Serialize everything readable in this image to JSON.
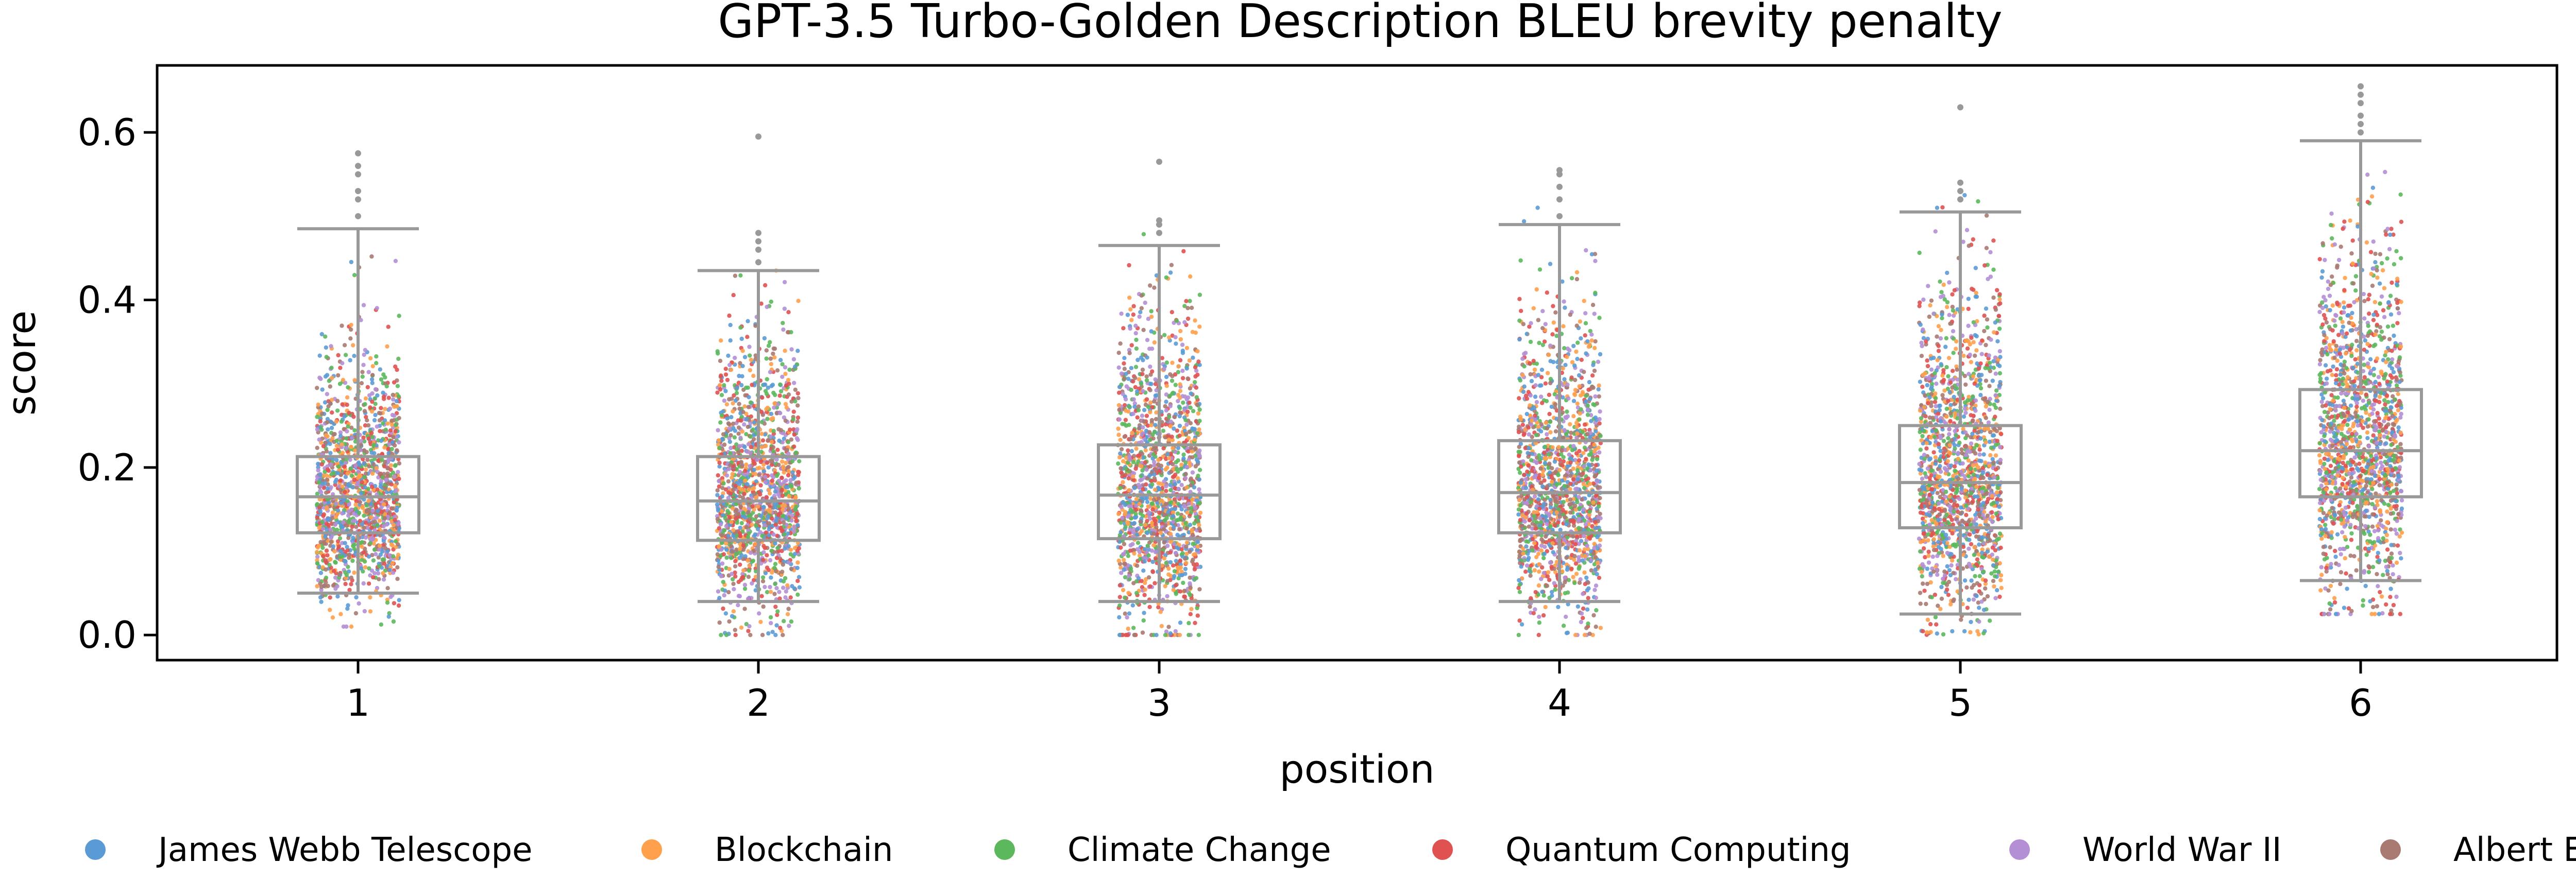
{
  "chart_data": {
    "type": "box-strip",
    "title": "GPT-3.5 Turbo-Golden Description BLEU brevity penalty",
    "xlabel": "position",
    "ylabel": "score",
    "categories": [
      "1",
      "2",
      "3",
      "4",
      "5",
      "6"
    ],
    "ylim": [
      -0.03,
      0.68
    ],
    "yticks": [
      0.0,
      0.2,
      0.4,
      0.6
    ],
    "ytick_labels": [
      "0.0",
      "0.2",
      "0.4",
      "0.6"
    ],
    "grid": false,
    "legend_position": "bottom",
    "box_color": "#999999",
    "series": [
      {
        "name": "James Webb Telescope",
        "color": "#5b9bd5"
      },
      {
        "name": "Blockchain",
        "color": "#ffa04d"
      },
      {
        "name": "Climate Change",
        "color": "#5cb85c"
      },
      {
        "name": "Quantum Computing",
        "color": "#e05252"
      },
      {
        "name": "World War II",
        "color": "#b48fd6"
      },
      {
        "name": "Albert Einstein",
        "color": "#a87a72"
      }
    ],
    "boxes": [
      {
        "position": "1",
        "whisker_low": 0.05,
        "q1": 0.122,
        "median": 0.165,
        "q3": 0.213,
        "whisker_high": 0.485,
        "outliers": [
          0.5,
          0.52,
          0.53,
          0.55,
          0.56,
          0.575
        ]
      },
      {
        "position": "2",
        "whisker_low": 0.04,
        "q1": 0.113,
        "median": 0.16,
        "q3": 0.213,
        "whisker_high": 0.435,
        "outliers": [
          0.445,
          0.46,
          0.47,
          0.48,
          0.595
        ]
      },
      {
        "position": "3",
        "whisker_low": 0.04,
        "q1": 0.115,
        "median": 0.167,
        "q3": 0.227,
        "whisker_high": 0.465,
        "outliers": [
          0.48,
          0.49,
          0.495,
          0.565
        ]
      },
      {
        "position": "4",
        "whisker_low": 0.04,
        "q1": 0.122,
        "median": 0.17,
        "q3": 0.232,
        "whisker_high": 0.49,
        "outliers": [
          0.5,
          0.52,
          0.535,
          0.55,
          0.555
        ]
      },
      {
        "position": "5",
        "whisker_low": 0.025,
        "q1": 0.128,
        "median": 0.182,
        "q3": 0.25,
        "whisker_high": 0.505,
        "outliers": [
          0.52,
          0.53,
          0.54,
          0.63
        ]
      },
      {
        "position": "6",
        "whisker_low": 0.065,
        "q1": 0.165,
        "median": 0.22,
        "q3": 0.293,
        "whisker_high": 0.59,
        "outliers": [
          0.6,
          0.61,
          0.62,
          0.635,
          0.645,
          0.655
        ]
      }
    ]
  }
}
